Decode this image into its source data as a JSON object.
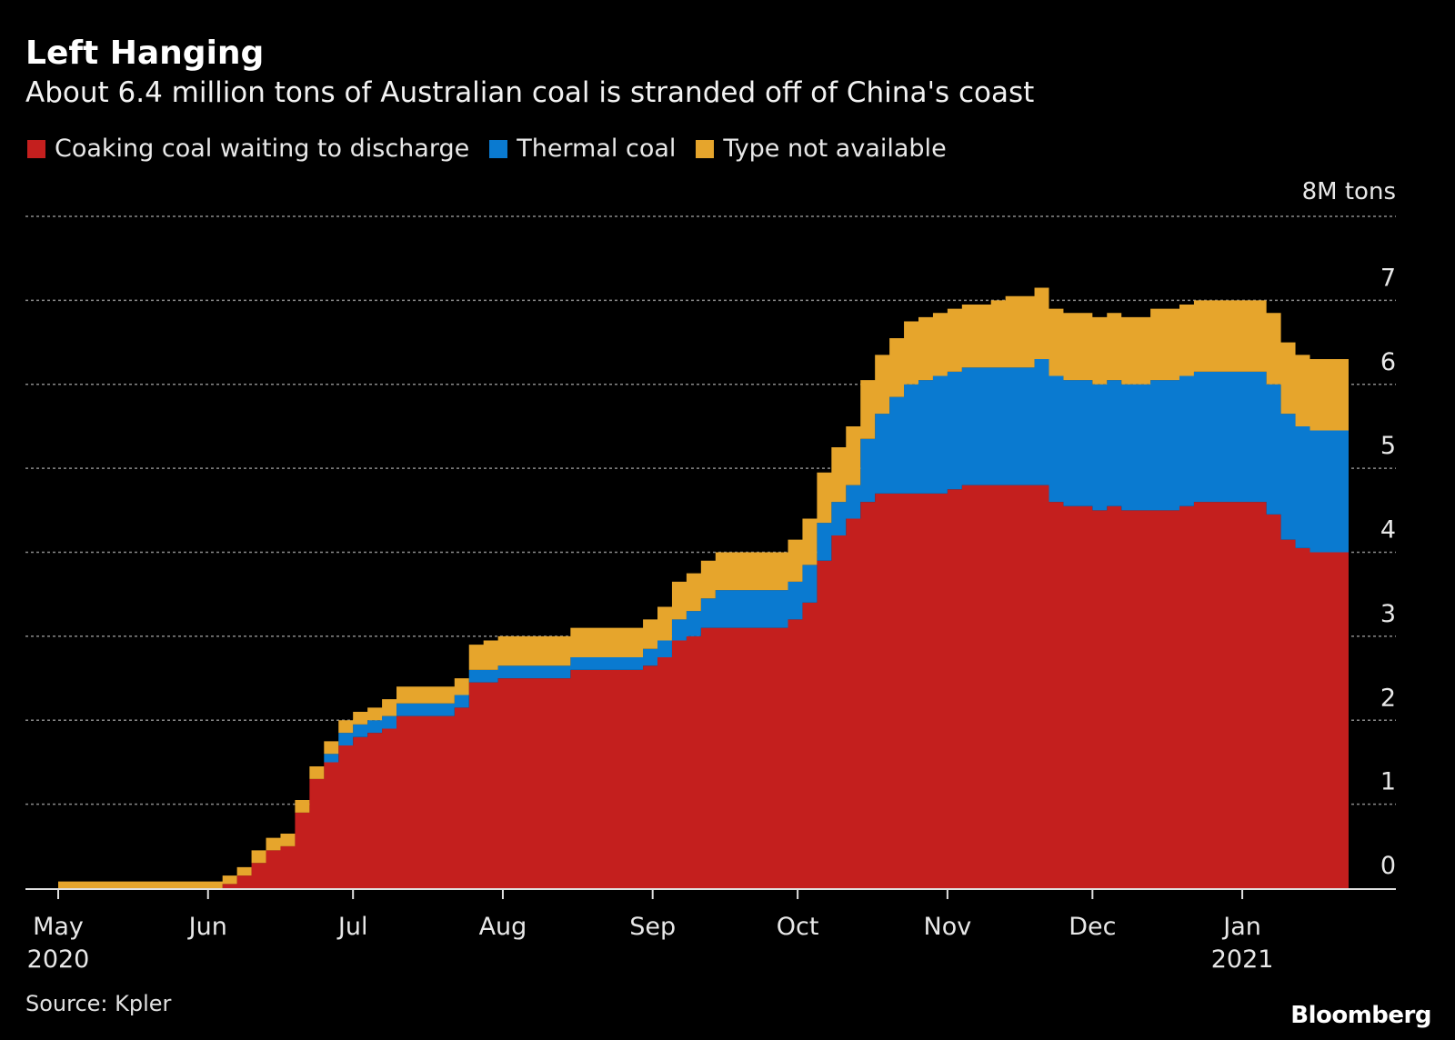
{
  "title": "Left Hanging",
  "subtitle": "About 6.4 million tons of Australian coal is stranded off of China's coast",
  "source": "Source: Kpler",
  "logo": "Bloomberg",
  "colors": {
    "background": "#000000",
    "coking": "#c41f1e",
    "thermal": "#0a7ad0",
    "type_na": "#e6a52c",
    "grid": "#8a8a8a"
  },
  "legend": [
    {
      "label": "Coaking coal waiting to discharge",
      "color": "#c41f1e"
    },
    {
      "label": "Thermal coal",
      "color": "#0a7ad0"
    },
    {
      "label": "Type not available",
      "color": "#e6a52c"
    }
  ],
  "chart_data": {
    "type": "area",
    "stacked": true,
    "title": "Left Hanging",
    "subtitle": "About 6.4 million tons of Australian coal is stranded off of China's coast",
    "ylabel": "8M tons",
    "ylim": [
      0,
      8
    ],
    "yticks": [
      "0",
      "1",
      "2",
      "3",
      "4",
      "5",
      "6",
      "7",
      "8M tons"
    ],
    "grid": true,
    "xaxis": {
      "start": "2020-05-01",
      "end": "2021-01-22",
      "ticks": [
        {
          "label": "May",
          "label2": "2020",
          "day": 0
        },
        {
          "label": "Jun",
          "label2": "",
          "day": 31
        },
        {
          "label": "Jul",
          "label2": "",
          "day": 61
        },
        {
          "label": "Aug",
          "label2": "",
          "day": 92
        },
        {
          "label": "Sep",
          "label2": "",
          "day": 123
        },
        {
          "label": "Oct",
          "label2": "",
          "day": 153
        },
        {
          "label": "Nov",
          "label2": "",
          "day": 184
        },
        {
          "label": "Dec",
          "label2": "",
          "day": 214
        },
        {
          "label": "Jan",
          "label2": "2021",
          "day": 245
        }
      ]
    },
    "x_days": [
      0,
      31,
      34,
      37,
      40,
      43,
      46,
      49,
      52,
      55,
      58,
      61,
      64,
      67,
      70,
      73,
      76,
      79,
      82,
      85,
      88,
      91,
      94,
      97,
      100,
      103,
      106,
      109,
      112,
      115,
      118,
      121,
      124,
      127,
      130,
      133,
      136,
      139,
      142,
      145,
      148,
      151,
      154,
      157,
      160,
      163,
      166,
      169,
      172,
      175,
      178,
      181,
      184,
      187,
      190,
      193,
      196,
      199,
      202,
      205,
      208,
      211,
      214,
      217,
      220,
      223,
      226,
      229,
      232,
      235,
      238,
      241,
      244,
      247,
      250,
      253,
      256,
      259,
      262,
      267
    ],
    "series": [
      {
        "name": "Coaking coal waiting to discharge",
        "values": [
          0,
          0,
          0.05,
          0.15,
          0.3,
          0.45,
          0.5,
          0.9,
          1.3,
          1.5,
          1.7,
          1.8,
          1.85,
          1.9,
          2.05,
          2.05,
          2.05,
          2.05,
          2.15,
          2.45,
          2.45,
          2.5,
          2.5,
          2.5,
          2.5,
          2.5,
          2.6,
          2.6,
          2.6,
          2.6,
          2.6,
          2.65,
          2.75,
          2.95,
          3.0,
          3.1,
          3.1,
          3.1,
          3.1,
          3.1,
          3.1,
          3.2,
          3.4,
          3.9,
          4.2,
          4.4,
          4.6,
          4.7,
          4.7,
          4.7,
          4.7,
          4.7,
          4.75,
          4.8,
          4.8,
          4.8,
          4.8,
          4.8,
          4.8,
          4.6,
          4.55,
          4.55,
          4.5,
          4.55,
          4.5,
          4.5,
          4.5,
          4.5,
          4.55,
          4.6,
          4.6,
          4.6,
          4.6,
          4.6,
          4.45,
          4.15,
          4.05,
          4.0,
          4.0,
          4.0
        ]
      },
      {
        "name": "Thermal coal",
        "values": [
          0,
          0,
          0,
          0,
          0,
          0,
          0,
          0,
          0,
          0.1,
          0.15,
          0.15,
          0.15,
          0.15,
          0.15,
          0.15,
          0.15,
          0.15,
          0.15,
          0.15,
          0.15,
          0.15,
          0.15,
          0.15,
          0.15,
          0.15,
          0.15,
          0.15,
          0.15,
          0.15,
          0.15,
          0.2,
          0.2,
          0.25,
          0.3,
          0.35,
          0.45,
          0.45,
          0.45,
          0.45,
          0.45,
          0.45,
          0.45,
          0.45,
          0.4,
          0.4,
          0.75,
          0.95,
          1.15,
          1.3,
          1.35,
          1.4,
          1.4,
          1.4,
          1.4,
          1.4,
          1.4,
          1.4,
          1.5,
          1.5,
          1.5,
          1.5,
          1.5,
          1.5,
          1.5,
          1.5,
          1.55,
          1.55,
          1.55,
          1.55,
          1.55,
          1.55,
          1.55,
          1.55,
          1.55,
          1.5,
          1.45,
          1.45,
          1.45,
          1.45
        ]
      },
      {
        "name": "Type not available",
        "values": [
          0.08,
          0.08,
          0.1,
          0.1,
          0.15,
          0.15,
          0.15,
          0.15,
          0.15,
          0.15,
          0.15,
          0.15,
          0.15,
          0.2,
          0.2,
          0.2,
          0.2,
          0.2,
          0.2,
          0.3,
          0.35,
          0.35,
          0.35,
          0.35,
          0.35,
          0.35,
          0.35,
          0.35,
          0.35,
          0.35,
          0.35,
          0.35,
          0.4,
          0.45,
          0.45,
          0.45,
          0.45,
          0.45,
          0.45,
          0.45,
          0.45,
          0.5,
          0.55,
          0.6,
          0.65,
          0.7,
          0.7,
          0.7,
          0.7,
          0.75,
          0.75,
          0.75,
          0.75,
          0.75,
          0.75,
          0.8,
          0.85,
          0.85,
          0.85,
          0.8,
          0.8,
          0.8,
          0.8,
          0.8,
          0.8,
          0.8,
          0.85,
          0.85,
          0.85,
          0.85,
          0.85,
          0.85,
          0.85,
          0.85,
          0.85,
          0.85,
          0.85,
          0.85,
          0.85,
          0.85
        ]
      }
    ]
  }
}
